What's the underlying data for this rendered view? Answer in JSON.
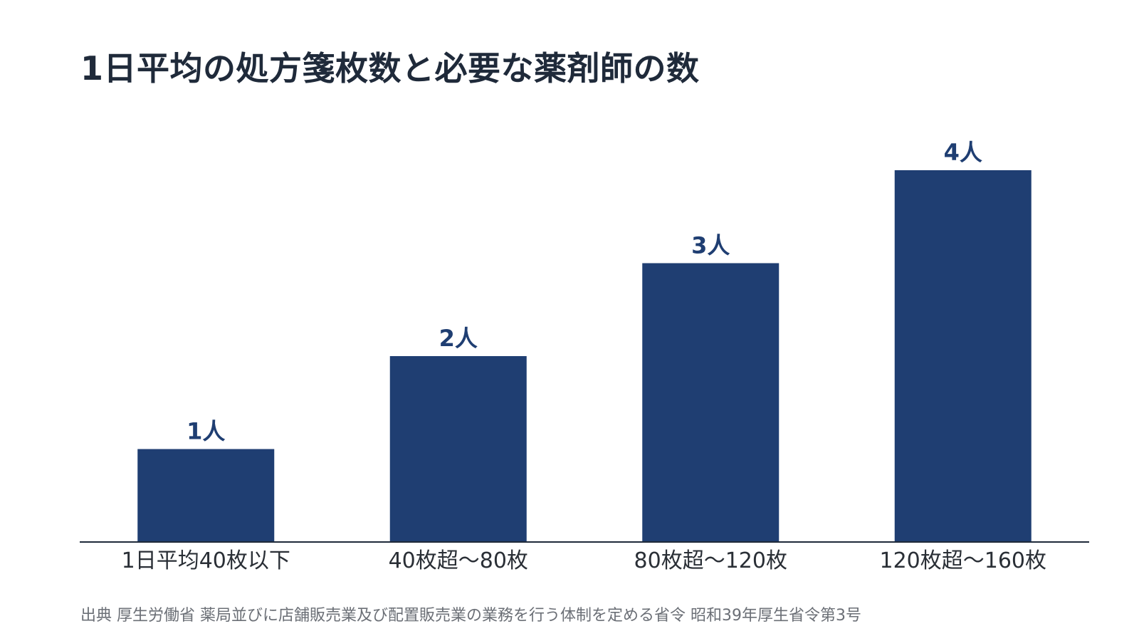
{
  "title": "1日平均の処方箋枚数と必要な薬剤師の数",
  "source": "出典 厚生労働省 薬局並びに店舗販売業及び配置販売業の業務を行う体制を定める省令 昭和39年厚生省令第3号",
  "colors": {
    "bar": "#1f3e72",
    "label": "#1f3e72",
    "axis": "#1f2a3a",
    "tick": "#2a2f36"
  },
  "chart_data": {
    "type": "bar",
    "categories": [
      "1日平均40枚以下",
      "40枚超〜80枚",
      "80枚超〜120枚",
      "120枚超〜160枚"
    ],
    "values": [
      1,
      2,
      3,
      4
    ],
    "data_labels": [
      "1人",
      "2人",
      "3人",
      "4人"
    ],
    "ylim": [
      0,
      4
    ],
    "grid": false
  }
}
